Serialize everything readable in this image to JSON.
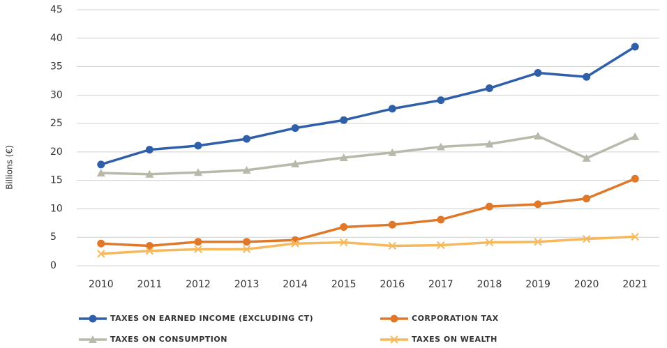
{
  "chart_data": {
    "type": "line",
    "y_label": "Billions (€)",
    "categories": [
      "2010",
      "2011",
      "2012",
      "2013",
      "2014",
      "2015",
      "2016",
      "2017",
      "2018",
      "2019",
      "2020",
      "2021"
    ],
    "series": [
      {
        "name": "TAXES ON EARNED INCOME (EXCLUDING CT)",
        "color": "#2e5fa8",
        "marker": "circle",
        "values": [
          17.8,
          20.4,
          21.1,
          22.3,
          24.2,
          25.6,
          27.6,
          29.1,
          31.2,
          33.9,
          33.2,
          38.5
        ]
      },
      {
        "name": "CORPORATION TAX",
        "color": "#e0782a",
        "marker": "circle",
        "values": [
          3.9,
          3.5,
          4.2,
          4.2,
          4.5,
          6.8,
          7.2,
          8.1,
          10.4,
          10.8,
          11.8,
          15.3
        ]
      },
      {
        "name": "TAXES ON CONSUMPTION",
        "color": "#b9b9ab",
        "marker": "triangle",
        "values": [
          16.3,
          16.1,
          16.4,
          16.8,
          17.9,
          19.0,
          19.9,
          20.9,
          21.4,
          22.8,
          18.9,
          22.7
        ]
      },
      {
        "name": "TAXES ON WEALTH",
        "color": "#f7b85c",
        "marker": "x",
        "values": [
          2.1,
          2.6,
          2.9,
          2.9,
          3.9,
          4.1,
          3.5,
          3.6,
          4.1,
          4.2,
          4.7,
          5.1
        ]
      }
    ],
    "ylim": [
      0,
      45
    ],
    "yticks": [
      0,
      5,
      10,
      15,
      20,
      25,
      30,
      35,
      40,
      45
    ],
    "grid": true,
    "legend": "bottom"
  }
}
